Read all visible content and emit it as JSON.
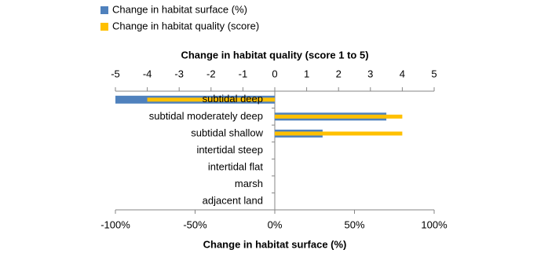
{
  "chart_data": {
    "type": "bar",
    "orientation": "horizontal",
    "xlabel": "Change in habitat surface (%)",
    "x2label": "Change in habitat quality (score 1 to 5)",
    "categories": [
      "subtidal deep",
      "subtidal moderately deep",
      "subtidal shallow",
      "intertidal steep",
      "intertidal flat",
      "marsh",
      "adjacent land"
    ],
    "series": [
      {
        "name": "Change in habitat surface (%)",
        "color": "#4f81bd",
        "axis": "x",
        "values": [
          -100,
          70,
          30,
          0,
          0,
          0,
          0
        ]
      },
      {
        "name": "Change in habitat quality (score)",
        "color": "#ffc000",
        "axis": "x2",
        "values": [
          -4,
          4,
          4,
          0,
          0,
          0,
          0
        ]
      }
    ],
    "xlim": [
      -100,
      100
    ],
    "xticks": [
      {
        "value": -100,
        "label": "-100%"
      },
      {
        "value": -50,
        "label": "-50%"
      },
      {
        "value": 0,
        "label": "0%"
      },
      {
        "value": 50,
        "label": "50%"
      },
      {
        "value": 100,
        "label": "100%"
      }
    ],
    "x2lim": [
      -5,
      5
    ],
    "x2ticks": [
      -5,
      -4,
      -3,
      -2,
      -1,
      0,
      1,
      2,
      3,
      4,
      5
    ],
    "legend": "top-left"
  }
}
